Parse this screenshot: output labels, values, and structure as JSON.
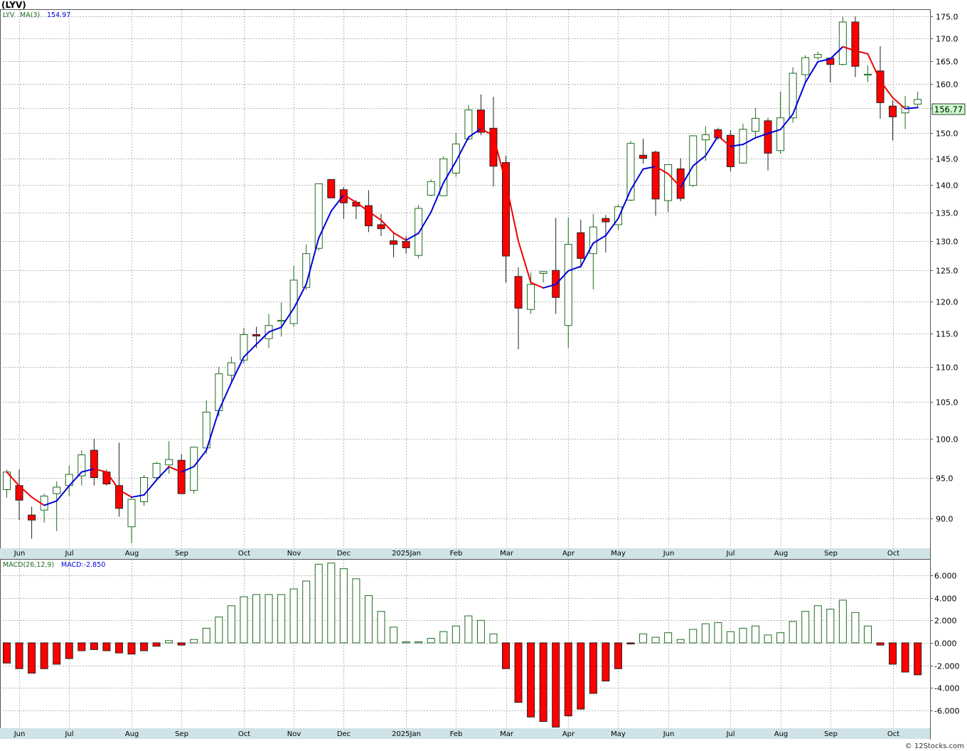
{
  "header": {
    "title": "(LYV)",
    "price_legend": "LYV",
    "ma_label": "MA(3)",
    "ma_value": "154.97",
    "macd_legend": "MACD(26,12,9)",
    "macd_value": "MACD:-2.850",
    "last_price": "156.77",
    "watermark": "© 12Stocks.com"
  },
  "colors": {
    "up_stroke": "#1f6b1f",
    "down_fill": "#ff0000",
    "ma_up": "#0000dd",
    "ma_down": "#ee0000",
    "axis_band": "#cfe3e8",
    "last_price_bg": "#ccffcc"
  },
  "months": [
    "Jun",
    "Jul",
    "Aug",
    "Sep",
    "Oct",
    "Nov",
    "Dec",
    "2025Jan",
    "Feb",
    "Mar",
    "Apr",
    "May",
    "Jun",
    "Jul",
    "Aug",
    "Sep",
    "Oct"
  ],
  "chart_data": [
    {
      "type": "candlestick",
      "title": "(LYV)",
      "series_name": "LYV",
      "yticks": [
        90,
        95,
        100,
        105,
        110,
        115,
        120,
        125,
        130,
        135,
        140,
        145,
        150,
        155,
        160,
        165,
        170,
        175
      ],
      "ylim": [
        86.5,
        176.5
      ],
      "scale": "log",
      "ohlc": [
        [
          93.5,
          96.0,
          92.5,
          95.7
        ],
        [
          94.0,
          96.0,
          89.8,
          92.2
        ],
        [
          90.4,
          91.4,
          87.6,
          89.8
        ],
        [
          91.0,
          93.0,
          89.5,
          92.7
        ],
        [
          93.0,
          94.5,
          88.5,
          93.8
        ],
        [
          94.0,
          96.5,
          92.7,
          95.4
        ],
        [
          95.2,
          98.5,
          94.0,
          97.9
        ],
        [
          98.5,
          100.0,
          94.0,
          95.0
        ],
        [
          95.7,
          96.0,
          94.0,
          94.2
        ],
        [
          94.0,
          99.5,
          90.2,
          91.2
        ],
        [
          89.0,
          92.5,
          87.1,
          92.3
        ],
        [
          92.0,
          95.3,
          91.5,
          95.0
        ],
        [
          95.0,
          97.0,
          94.5,
          96.8
        ],
        [
          96.6,
          99.7,
          95.5,
          97.3
        ],
        [
          97.2,
          98.0,
          93.8,
          93.0
        ],
        [
          93.4,
          99.0,
          93.0,
          98.9
        ],
        [
          98.8,
          105.2,
          98.0,
          103.6
        ],
        [
          103.8,
          110.0,
          103.0,
          109.0
        ],
        [
          108.8,
          111.5,
          108.0,
          110.6
        ],
        [
          111.0,
          115.8,
          110.5,
          114.8
        ],
        [
          114.8,
          116.0,
          112.8,
          114.6
        ],
        [
          114.2,
          118.0,
          112.8,
          116.2
        ],
        [
          117.0,
          119.8,
          114.5,
          117.0
        ],
        [
          116.5,
          125.8,
          116.0,
          123.4
        ],
        [
          122.2,
          129.4,
          121.8,
          127.8
        ],
        [
          128.7,
          140.2,
          128.3,
          140.2
        ],
        [
          141.0,
          141.0,
          137.6,
          137.6
        ],
        [
          139.1,
          139.6,
          133.8,
          136.7
        ],
        [
          136.8,
          137.2,
          133.8,
          136.1
        ],
        [
          136.2,
          139.0,
          131.5,
          132.6
        ],
        [
          132.8,
          134.7,
          130.8,
          132.1
        ],
        [
          130.0,
          131.5,
          127.2,
          129.4
        ],
        [
          129.9,
          130.8,
          127.8,
          128.8
        ],
        [
          127.5,
          136.3,
          127.0,
          135.7
        ],
        [
          138.1,
          141.0,
          137.9,
          140.6
        ],
        [
          138.0,
          145.4,
          138.0,
          144.9
        ],
        [
          142.2,
          150.0,
          141.5,
          147.8
        ],
        [
          148.8,
          155.6,
          148.5,
          154.6
        ],
        [
          154.6,
          157.8,
          149.5,
          150.1
        ],
        [
          150.9,
          157.3,
          139.7,
          143.5
        ],
        [
          144.2,
          145.5,
          123.0,
          127.4
        ],
        [
          124.0,
          125.5,
          112.6,
          118.9
        ],
        [
          118.7,
          124.6,
          118.0,
          122.7
        ],
        [
          124.5,
          124.5,
          123.0,
          124.8
        ],
        [
          125.0,
          134.0,
          118.0,
          120.6
        ],
        [
          116.2,
          134.1,
          112.8,
          129.4
        ],
        [
          131.4,
          133.7,
          125.4,
          127.0
        ],
        [
          127.8,
          134.7,
          121.9,
          132.4
        ],
        [
          133.9,
          134.5,
          128.0,
          133.3
        ],
        [
          132.8,
          136.4,
          131.8,
          136.0
        ],
        [
          137.2,
          148.4,
          137.0,
          147.9
        ],
        [
          145.6,
          148.8,
          144.0,
          145.0
        ],
        [
          146.2,
          146.5,
          134.4,
          137.4
        ],
        [
          137.1,
          143.8,
          135.0,
          143.8
        ],
        [
          143.0,
          145.0,
          137.0,
          137.5
        ],
        [
          139.9,
          149.5,
          139.6,
          149.4
        ],
        [
          148.6,
          151.3,
          144.5,
          149.6
        ],
        [
          150.6,
          151.0,
          148.6,
          149.0
        ],
        [
          149.5,
          150.5,
          142.5,
          143.4
        ],
        [
          144.1,
          151.8,
          144.0,
          150.7
        ],
        [
          150.3,
          155.0,
          149.0,
          152.9
        ],
        [
          152.4,
          153.0,
          142.7,
          146.0
        ],
        [
          146.5,
          158.4,
          145.9,
          153.0
        ],
        [
          153.0,
          163.6,
          152.0,
          162.3
        ],
        [
          162.0,
          166.2,
          160.2,
          165.7
        ],
        [
          165.7,
          167.0,
          165.2,
          166.4
        ],
        [
          165.6,
          165.5,
          160.3,
          164.2
        ],
        [
          164.2,
          175.0,
          164.0,
          173.7
        ],
        [
          173.7,
          175.0,
          161.5,
          163.8
        ],
        [
          162.0,
          164.0,
          160.4,
          162.1
        ],
        [
          162.8,
          168.2,
          152.8,
          156.1
        ],
        [
          155.4,
          156.6,
          148.5,
          153.2
        ],
        [
          154.0,
          157.5,
          150.7,
          155.3
        ],
        [
          155.8,
          158.4,
          155.0,
          156.77
        ]
      ]
    },
    {
      "type": "bar",
      "title": "MACD(26,12,9)",
      "series_name": "MACD",
      "yticks": [
        -6.0,
        -4.0,
        -2.0,
        0.0,
        2.0,
        4.0,
        6.0
      ],
      "ylim": [
        -7.6,
        7.4
      ],
      "values": [
        -1.8,
        -2.3,
        -2.7,
        -2.3,
        -1.9,
        -1.4,
        -0.7,
        -0.6,
        -0.7,
        -0.9,
        -1.0,
        -0.7,
        -0.3,
        0.2,
        -0.2,
        0.3,
        1.3,
        2.3,
        3.3,
        4.1,
        4.3,
        4.3,
        4.3,
        4.8,
        5.5,
        7.0,
        7.1,
        6.6,
        5.7,
        4.2,
        2.8,
        1.4,
        0.1,
        0.1,
        0.4,
        1.0,
        1.5,
        2.4,
        2.0,
        0.8,
        -2.3,
        -5.3,
        -6.6,
        -7.0,
        -7.5,
        -6.5,
        -5.9,
        -4.5,
        -3.4,
        -2.3,
        -0.1,
        0.8,
        0.5,
        0.9,
        0.3,
        1.2,
        1.7,
        1.8,
        1.0,
        1.3,
        1.5,
        0.7,
        0.9,
        1.9,
        2.8,
        3.3,
        3.0,
        3.8,
        2.7,
        1.5,
        -0.2,
        -1.9,
        -2.6,
        -2.85
      ]
    }
  ]
}
